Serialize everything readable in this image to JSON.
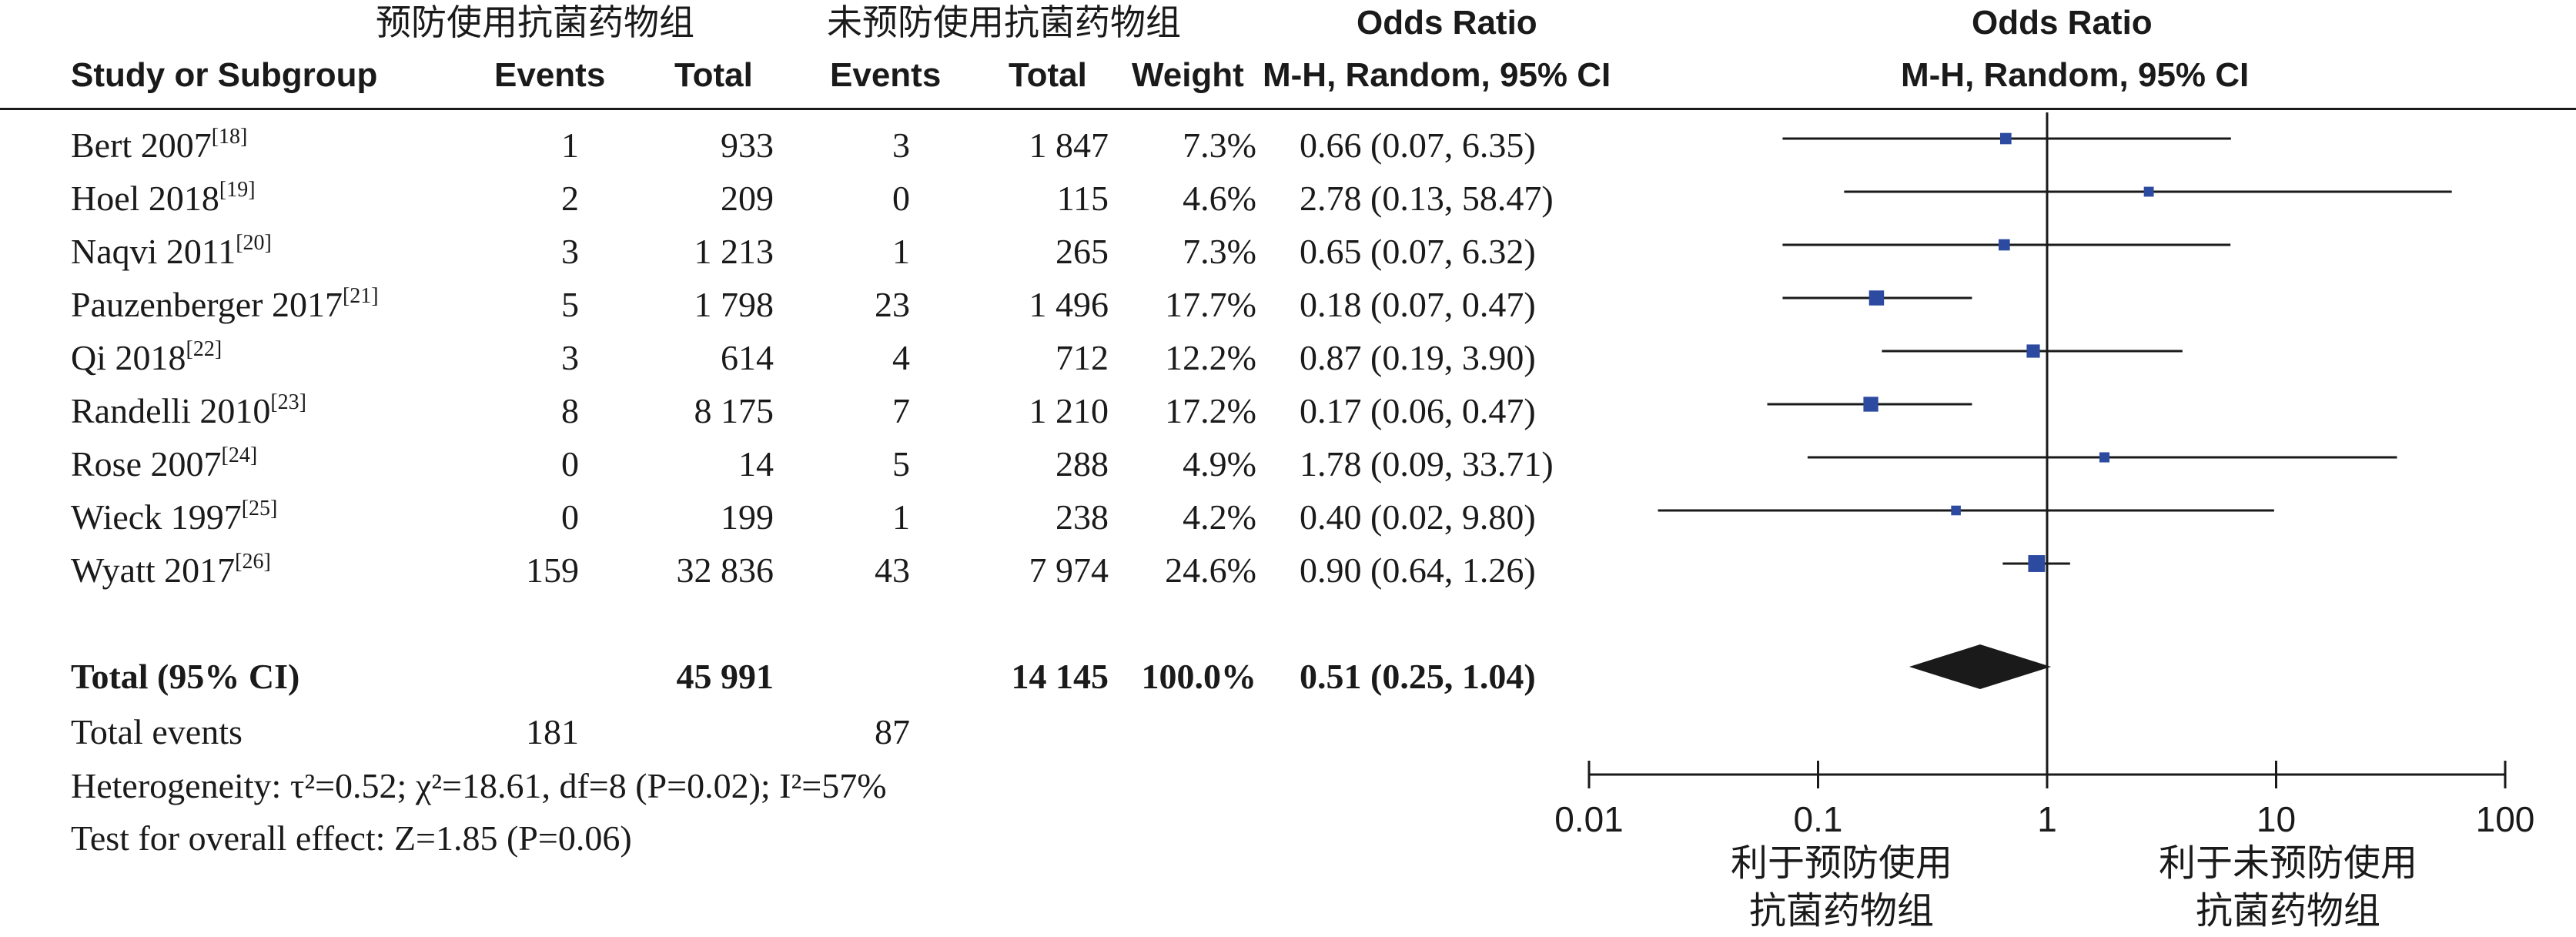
{
  "headers": {
    "group_exp": "预防使用抗菌药物组",
    "group_ctrl": "未预防使用抗菌药物组",
    "or_table": "Odds Ratio",
    "or_plot": "Odds Ratio",
    "study": "Study or Subgroup",
    "events_exp": "Events",
    "total_exp": "Total",
    "events_ctrl": "Events",
    "total_ctrl": "Total",
    "weight": "Weight",
    "method_table": "M-H, Random, 95% CI",
    "method_plot": "M-H, Random, 95% CI"
  },
  "studies": [
    {
      "name": "Bert 2007",
      "ref": "[18]",
      "e1": "1",
      "t1": "933",
      "e2": "3",
      "t2": "1 847",
      "weight": "7.3%",
      "ci_text": "0.66 (0.07, 6.35)"
    },
    {
      "name": "Hoel 2018",
      "ref": "[19]",
      "e1": "2",
      "t1": "209",
      "e2": "0",
      "t2": "115",
      "weight": "4.6%",
      "ci_text": "2.78 (0.13, 58.47)"
    },
    {
      "name": "Naqvi 2011",
      "ref": "[20]",
      "e1": "3",
      "t1": "1 213",
      "e2": "1",
      "t2": "265",
      "weight": "7.3%",
      "ci_text": "0.65 (0.07, 6.32)"
    },
    {
      "name": "Pauzenberger 2017",
      "ref": "[21]",
      "e1": "5",
      "t1": "1 798",
      "e2": "23",
      "t2": "1 496",
      "weight": "17.7%",
      "ci_text": "0.18 (0.07, 0.47)"
    },
    {
      "name": "Qi 2018",
      "ref": "[22]",
      "e1": "3",
      "t1": "614",
      "e2": "4",
      "t2": "712",
      "weight": "12.2%",
      "ci_text": "0.87 (0.19, 3.90)"
    },
    {
      "name": "Randelli 2010",
      "ref": "[23]",
      "e1": "8",
      "t1": "8 175",
      "e2": "7",
      "t2": "1 210",
      "weight": "17.2%",
      "ci_text": "0.17 (0.06, 0.47)"
    },
    {
      "name": "Rose 2007",
      "ref": "[24]",
      "e1": "0",
      "t1": "14",
      "e2": "5",
      "t2": "288",
      "weight": "4.9%",
      "ci_text": "1.78 (0.09, 33.71)"
    },
    {
      "name": "Wieck 1997",
      "ref": "[25]",
      "e1": "0",
      "t1": "199",
      "e2": "1",
      "t2": "238",
      "weight": "4.2%",
      "ci_text": "0.40 (0.02, 9.80)"
    },
    {
      "name": "Wyatt 2017",
      "ref": "[26]",
      "e1": "159",
      "t1": "32 836",
      "e2": "43",
      "t2": "7 974",
      "weight": "24.6%",
      "ci_text": "0.90 (0.64, 1.26)"
    }
  ],
  "total": {
    "label": "Total (95% CI)",
    "t1": "45 991",
    "t2": "14 145",
    "weight": "100.0%",
    "ci_text": "0.51 (0.25, 1.04)"
  },
  "total_events": {
    "label": "Total events",
    "e1": "181",
    "e2": "87"
  },
  "heterogeneity": "Heterogeneity: τ²=0.52; χ²=18.61, df=8 (P=0.02); I²=57%",
  "overall_effect": "Test for overall effect: Z=1.85 (P=0.06)",
  "favours": {
    "left_line1": "利于预防使用",
    "left_line2": "抗菌药物组",
    "right_line1": "利于未预防使用",
    "right_line2": "抗菌药物组"
  },
  "colors": {
    "marker": "#2b4aa0",
    "diamond": "#1a1a1a",
    "line": "#1a1a1a"
  },
  "chart_data": {
    "type": "forest",
    "x_scale": "log",
    "xlim": [
      0.01,
      100
    ],
    "ticks": [
      0.01,
      0.1,
      1,
      10,
      100
    ],
    "tick_labels": [
      "0.01",
      "0.1",
      "1",
      "10",
      "100"
    ],
    "reference_line": 1,
    "series": [
      {
        "study": "Bert 2007",
        "or": 0.66,
        "lower": 0.07,
        "upper": 6.35,
        "weight": 7.3
      },
      {
        "study": "Hoel 2018",
        "or": 2.78,
        "lower": 0.13,
        "upper": 58.47,
        "weight": 4.6
      },
      {
        "study": "Naqvi 2011",
        "or": 0.65,
        "lower": 0.07,
        "upper": 6.32,
        "weight": 7.3
      },
      {
        "study": "Pauzenberger 2017",
        "or": 0.18,
        "lower": 0.07,
        "upper": 0.47,
        "weight": 17.7
      },
      {
        "study": "Qi 2018",
        "or": 0.87,
        "lower": 0.19,
        "upper": 3.9,
        "weight": 12.2
      },
      {
        "study": "Randelli 2010",
        "or": 0.17,
        "lower": 0.06,
        "upper": 0.47,
        "weight": 17.2
      },
      {
        "study": "Rose 2007",
        "or": 1.78,
        "lower": 0.09,
        "upper": 33.71,
        "weight": 4.9
      },
      {
        "study": "Wieck 1997",
        "or": 0.4,
        "lower": 0.02,
        "upper": 9.8,
        "weight": 4.2
      },
      {
        "study": "Wyatt 2017",
        "or": 0.9,
        "lower": 0.64,
        "upper": 1.26,
        "weight": 24.6
      }
    ],
    "pooled": {
      "or": 0.51,
      "lower": 0.25,
      "upper": 1.04
    }
  }
}
